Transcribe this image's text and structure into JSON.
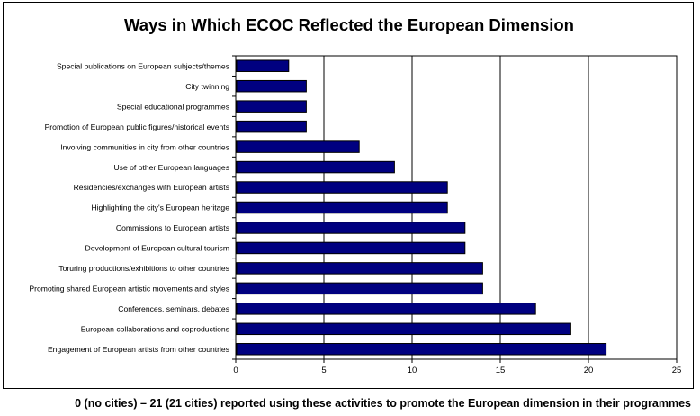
{
  "chart_data": {
    "type": "bar",
    "orientation": "horizontal",
    "title": "Ways in Which ECOC Reflected the European Dimension",
    "xlabel": "",
    "ylabel": "",
    "xlim": [
      0,
      25
    ],
    "x_ticks": [
      0,
      5,
      10,
      15,
      20,
      25
    ],
    "grid": true,
    "bar_color": "#000080",
    "categories": [
      "Special publications on European subjects/themes",
      "City twinning",
      "Special educational programmes",
      "Promotion of European public figures/historical events",
      "Involving communities in city from other countries",
      "Use of other European languages",
      "Residencies/exchanges with European artists",
      "Highlighting the city's European heritage",
      "Commissions to European artists",
      "Development of European cultural tourism",
      "Toruring productions/exhibitions to other countries",
      "Promoting shared European artistic movements and styles",
      "Conferences, seminars, debates",
      "European collaborations and coproductions",
      "Engagement of European artists from other countries"
    ],
    "values": [
      3,
      4,
      4,
      4,
      7,
      9,
      12,
      12,
      13,
      13,
      14,
      14,
      17,
      19,
      21
    ]
  },
  "footnote": "0 (no cities) – 21 (21 cities) reported using these activities to promote the European dimension in their programmes"
}
